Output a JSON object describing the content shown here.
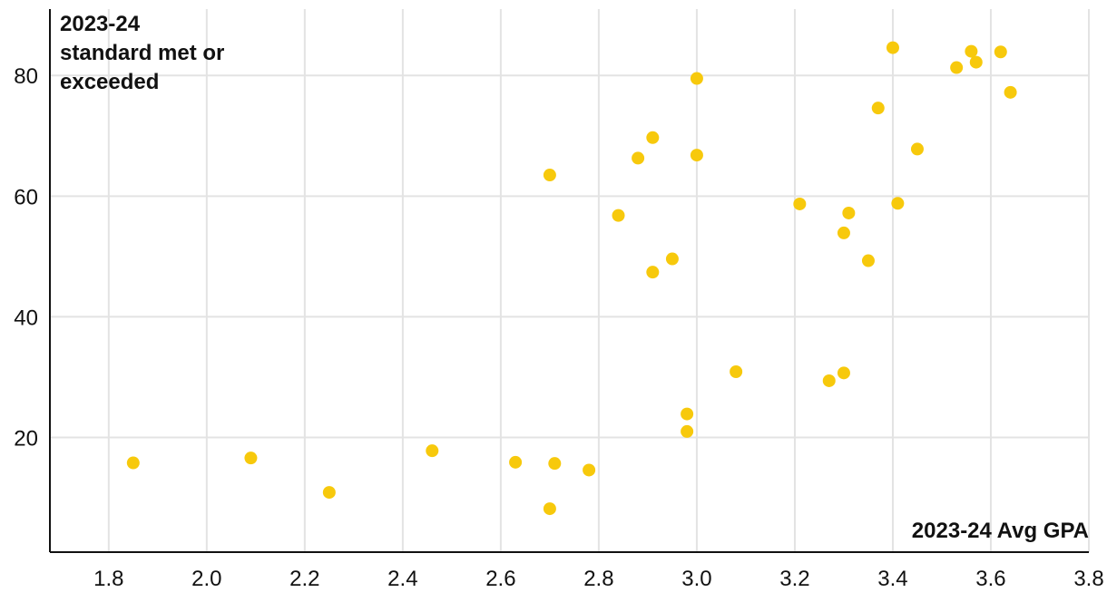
{
  "chart_data": {
    "type": "scatter",
    "ylabel": "2023-24 standard met or exceeded",
    "ylabel_lines": [
      "2023-24",
      "standard met or",
      "exceeded"
    ],
    "xlabel": "2023-24 Avg GPA",
    "xlim": [
      1.68,
      3.8
    ],
    "ylim": [
      1,
      91
    ],
    "x_ticks": [
      1.8,
      2.0,
      2.2,
      2.4,
      2.6,
      2.8,
      3.0,
      3.2,
      3.4,
      3.6,
      3.8
    ],
    "x_tick_labels": [
      "1.8",
      "2.0",
      "2.2",
      "2.4",
      "2.6",
      "2.8",
      "3.0",
      "3.2",
      "3.4",
      "3.6",
      "3.8"
    ],
    "y_ticks": [
      20,
      40,
      60,
      80
    ],
    "y_tick_labels": [
      "20",
      "40",
      "60",
      "80"
    ],
    "grid": true,
    "point_color": "#f7c90c",
    "points": [
      {
        "x": 1.85,
        "y": 15.8
      },
      {
        "x": 2.09,
        "y": 16.6
      },
      {
        "x": 2.25,
        "y": 10.9
      },
      {
        "x": 2.46,
        "y": 17.8
      },
      {
        "x": 2.63,
        "y": 15.9
      },
      {
        "x": 2.7,
        "y": 8.2
      },
      {
        "x": 2.71,
        "y": 15.7
      },
      {
        "x": 2.78,
        "y": 14.6
      },
      {
        "x": 2.7,
        "y": 63.5
      },
      {
        "x": 2.84,
        "y": 56.8
      },
      {
        "x": 2.88,
        "y": 66.3
      },
      {
        "x": 2.91,
        "y": 69.7
      },
      {
        "x": 2.91,
        "y": 47.4
      },
      {
        "x": 2.95,
        "y": 49.6
      },
      {
        "x": 2.98,
        "y": 23.9
      },
      {
        "x": 2.98,
        "y": 21.0
      },
      {
        "x": 3.0,
        "y": 79.5
      },
      {
        "x": 3.0,
        "y": 66.8
      },
      {
        "x": 3.08,
        "y": 30.9
      },
      {
        "x": 3.21,
        "y": 58.7
      },
      {
        "x": 3.27,
        "y": 29.4
      },
      {
        "x": 3.3,
        "y": 30.7
      },
      {
        "x": 3.3,
        "y": 53.9
      },
      {
        "x": 3.31,
        "y": 57.2
      },
      {
        "x": 3.35,
        "y": 49.3
      },
      {
        "x": 3.37,
        "y": 74.6
      },
      {
        "x": 3.4,
        "y": 84.6
      },
      {
        "x": 3.41,
        "y": 58.8
      },
      {
        "x": 3.45,
        "y": 67.8
      },
      {
        "x": 3.53,
        "y": 81.3
      },
      {
        "x": 3.56,
        "y": 84.0
      },
      {
        "x": 3.57,
        "y": 82.2
      },
      {
        "x": 3.62,
        "y": 83.9
      },
      {
        "x": 3.64,
        "y": 77.2
      }
    ]
  }
}
